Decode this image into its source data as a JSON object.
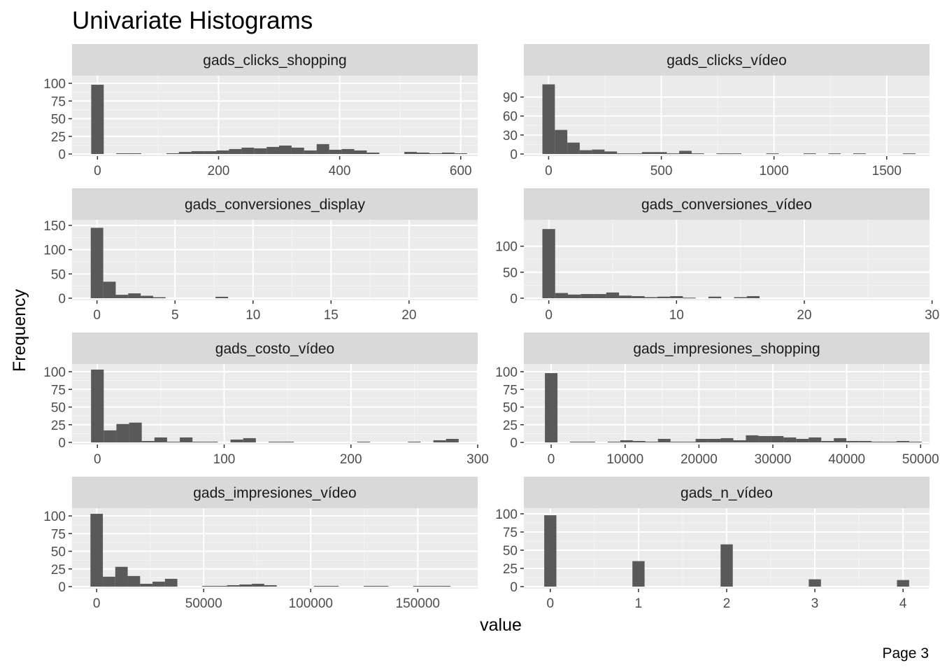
{
  "page": {
    "title": "Univariate Histograms",
    "xlabel": "value",
    "ylabel": "Frequency",
    "footer": "Page 3"
  },
  "colors": {
    "panel_bg": "#ebebeb",
    "strip_bg": "#d9d9d9",
    "grid_major": "#ffffff",
    "grid_minor": "#f5f5f5",
    "bar_fill": "#595959",
    "tick_text": "#4d4d4d",
    "title_text": "#000000",
    "strip_text": "#1a1a1a"
  },
  "chart_data": [
    {
      "type": "bar",
      "title": "gads_clicks_shopping",
      "xlim": [
        -42,
        628
      ],
      "ylim": [
        0,
        103
      ],
      "xticks": [
        0,
        200,
        400,
        600
      ],
      "yticks": [
        0,
        25,
        50,
        75,
        100
      ],
      "bin_width": 20.7,
      "bins": [
        0,
        20.7,
        41.4,
        62.1,
        82.8,
        103.4,
        124.1,
        144.8,
        165.5,
        186.2,
        206.9,
        227.6,
        248.3,
        269,
        289.7,
        310.3,
        331,
        351.7,
        372.4,
        393.1,
        413.8,
        434.5,
        455.2,
        475.9,
        496.6,
        517.2,
        537.9,
        558.6,
        579.3,
        600
      ],
      "counts": [
        98,
        0,
        1,
        1,
        0,
        0,
        1,
        3,
        4,
        4,
        5,
        7,
        9,
        8,
        10,
        12,
        9,
        5,
        14,
        6,
        7,
        5,
        2,
        0,
        0,
        3,
        2,
        1,
        2,
        1
      ]
    },
    {
      "type": "bar",
      "title": "gads_clicks_vídeo",
      "xlim": [
        -110,
        1690
      ],
      "ylim": [
        0,
        115
      ],
      "xticks": [
        0,
        500,
        1000,
        1500
      ],
      "yticks": [
        0,
        30,
        60,
        90
      ],
      "bin_width": 55.2,
      "bins": [
        0,
        55.2,
        110.3,
        165.5,
        220.7,
        275.9,
        331,
        386.2,
        441.4,
        496.6,
        551.7,
        606.9,
        662.1,
        717.2,
        772.4,
        827.6,
        882.8,
        937.9,
        993.1,
        1048.3,
        1103.4,
        1158.6,
        1213.8,
        1269,
        1324.1,
        1379.3,
        1434.5,
        1489.7,
        1544.8,
        1600
      ],
      "counts": [
        110,
        38,
        18,
        6,
        7,
        4,
        1,
        1,
        3,
        3,
        1,
        5,
        1,
        0,
        1,
        1,
        0,
        0,
        1,
        0,
        0,
        1,
        0,
        1,
        0,
        1,
        0,
        0,
        0,
        1
      ]
    },
    {
      "type": "bar",
      "title": "gads_conversiones_display",
      "xlim": [
        -1.6,
        24.4
      ],
      "ylim": [
        0,
        150
      ],
      "xticks": [
        0,
        5,
        10,
        15,
        20
      ],
      "yticks": [
        0,
        50,
        100,
        150
      ],
      "bin_width": 0.8,
      "bins": [
        0,
        0.8,
        1.6,
        2.4,
        3.2,
        4,
        4.8,
        5.6,
        6.4,
        7.2,
        8,
        8.8,
        9.6,
        10.4,
        11.2,
        12,
        12.8,
        13.6,
        14.4,
        15.2,
        16,
        16.8,
        17.6,
        18.4,
        19.2,
        20,
        20.8,
        21.6,
        22.4
      ],
      "counts": [
        145,
        34,
        7,
        10,
        5,
        2,
        0,
        0,
        0,
        0,
        3,
        0,
        0,
        0,
        0,
        0,
        0,
        0,
        0,
        0,
        0,
        0,
        0,
        0,
        0,
        0,
        0,
        0,
        0
      ]
    },
    {
      "type": "bar",
      "title": "gads_conversiones_vídeo",
      "xlim": [
        -1.95,
        29.8
      ],
      "ylim": [
        0,
        140
      ],
      "xticks": [
        0,
        10,
        20,
        30
      ],
      "yticks": [
        0,
        50,
        100
      ],
      "bin_width": 1.0,
      "bins": [
        0,
        1,
        2,
        3,
        4,
        5,
        6,
        7,
        8,
        9,
        10,
        11,
        12,
        13,
        14,
        15,
        16
      ],
      "counts": [
        133,
        10,
        7,
        8,
        8,
        11,
        5,
        4,
        2,
        3,
        4,
        1,
        0,
        3,
        0,
        2,
        4
      ]
    },
    {
      "type": "bar",
      "title": "gads_costo_vídeo",
      "xlim": [
        -20,
        300
      ],
      "ylim": [
        0,
        103
      ],
      "xticks": [
        0,
        100,
        200,
        300
      ],
      "yticks": [
        0,
        25,
        50,
        75,
        100
      ],
      "bin_width": 10,
      "bins": [
        0,
        10,
        20,
        30,
        40,
        50,
        60,
        70,
        80,
        90,
        100,
        110,
        120,
        130,
        140,
        150,
        160,
        170,
        180,
        190,
        200,
        210,
        220,
        230,
        240,
        250,
        260,
        270,
        280
      ],
      "counts": [
        103,
        17,
        26,
        28,
        2,
        7,
        1,
        7,
        1,
        1,
        0,
        4,
        6,
        0,
        1,
        1,
        0,
        0,
        0,
        0,
        0,
        1,
        0,
        0,
        0,
        1,
        0,
        3,
        5
      ]
    },
    {
      "type": "bar",
      "title": "gads_impresiones_shopping",
      "xlim": [
        -3700,
        51200
      ],
      "ylim": [
        0,
        103
      ],
      "xticks": [
        0,
        10000,
        20000,
        30000,
        40000,
        50000
      ],
      "yticks": [
        0,
        25,
        50,
        75,
        100
      ],
      "bin_width": 1700,
      "bins": [
        0,
        1700,
        3400,
        5100,
        6800,
        8500,
        10200,
        11900,
        13600,
        15300,
        17000,
        18700,
        20400,
        22100,
        23800,
        25500,
        27200,
        28900,
        30600,
        32300,
        34000,
        35700,
        37400,
        39100,
        40800,
        42500,
        44200,
        45900,
        47600,
        49300
      ],
      "counts": [
        98,
        0,
        1,
        1,
        0,
        1,
        3,
        2,
        1,
        5,
        1,
        1,
        5,
        5,
        6,
        3,
        10,
        9,
        9,
        7,
        5,
        7,
        2,
        6,
        2,
        2,
        1,
        1,
        2,
        1
      ]
    },
    {
      "type": "bar",
      "title": "gads_impresiones_vídeo",
      "xlim": [
        -11500,
        178000
      ],
      "ylim": [
        0,
        103
      ],
      "xticks": [
        0,
        50000,
        100000,
        150000
      ],
      "yticks": [
        0,
        25,
        50,
        75,
        100
      ],
      "bin_width": 5800,
      "bins": [
        0,
        5800,
        11600,
        17400,
        23200,
        29000,
        34800,
        40600,
        46400,
        52200,
        58000,
        63800,
        69600,
        75400,
        81200,
        87000,
        92800,
        98600,
        104400,
        110200,
        116000,
        121800,
        127600,
        133400,
        139200,
        145000,
        150800,
        156600,
        162400
      ],
      "counts": [
        103,
        14,
        28,
        15,
        4,
        7,
        11,
        0,
        0,
        1,
        1,
        2,
        3,
        4,
        2,
        0,
        0,
        0,
        1,
        1,
        0,
        0,
        1,
        1,
        0,
        0,
        1,
        1,
        1
      ]
    },
    {
      "type": "bar",
      "title": "gads_n_vídeo",
      "xlim": [
        -0.3,
        4.3
      ],
      "ylim": [
        0,
        100
      ],
      "xticks": [
        0,
        1,
        2,
        3,
        4
      ],
      "yticks": [
        0,
        25,
        50,
        75,
        100
      ],
      "bin_width": 0.138,
      "bins": [
        0,
        1,
        2,
        3,
        4
      ],
      "counts": [
        98,
        35,
        58,
        10,
        9
      ]
    }
  ]
}
